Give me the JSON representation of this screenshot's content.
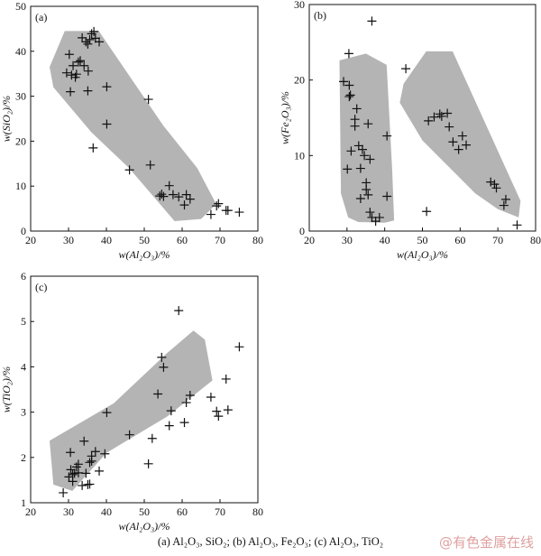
{
  "caption": "(a) Al₂O₃, SiO₂; (b) Al₂O₃, Fe₂O₃; (c) Al₂O₃, TiO₂",
  "watermark": "@有色金属在线",
  "colors": {
    "region": "#b4b4b4",
    "marker": "#111111",
    "axis": "#111111"
  },
  "chart_data": [
    {
      "type": "scatter",
      "panel_label": "(a)",
      "xlabel": "w(Al₂O₃)/%",
      "ylabel": "w(SiO₂)/%",
      "xlim": [
        20,
        80
      ],
      "ylim": [
        0,
        50
      ],
      "xticks": [
        20,
        30,
        40,
        50,
        60,
        70,
        80
      ],
      "yticks": [
        0,
        10,
        20,
        30,
        40,
        50
      ],
      "marker": "plus",
      "points": [
        [
          29.5,
          35.2
        ],
        [
          30.2,
          39.3
        ],
        [
          30.5,
          31
        ],
        [
          30.8,
          34.7
        ],
        [
          31.2,
          36.8
        ],
        [
          31.8,
          34.2
        ],
        [
          32.1,
          34.9
        ],
        [
          32.6,
          37.6
        ],
        [
          33.1,
          37.9
        ],
        [
          33.6,
          43
        ],
        [
          34.1,
          36.8
        ],
        [
          34.6,
          42.1
        ],
        [
          35.1,
          41.6
        ],
        [
          35.1,
          31.2
        ],
        [
          35.2,
          35.6
        ],
        [
          35.6,
          42.6
        ],
        [
          36.1,
          43.9
        ],
        [
          36.5,
          18.5
        ],
        [
          36.7,
          44.4
        ],
        [
          37.1,
          42.9
        ],
        [
          38.1,
          42.1
        ],
        [
          40.1,
          32.1
        ],
        [
          40.1,
          23.8
        ],
        [
          46.1,
          13.6
        ],
        [
          51.1,
          29.3
        ],
        [
          51.6,
          14.7
        ],
        [
          54.1,
          7.8
        ],
        [
          54.6,
          8.2
        ],
        [
          55.1,
          7.7
        ],
        [
          56.6,
          10.1
        ],
        [
          57.6,
          8.1
        ],
        [
          59.1,
          7.6
        ],
        [
          60.6,
          5.8
        ],
        [
          61.1,
          8.1
        ],
        [
          62.1,
          7.1
        ],
        [
          67.6,
          3.7
        ],
        [
          69.1,
          5.6
        ],
        [
          69.6,
          6.1
        ],
        [
          71.6,
          4.6
        ],
        [
          72.1,
          4.6
        ],
        [
          75.1,
          4.2
        ]
      ],
      "region": [
        [
          25,
          36.5
        ],
        [
          29,
          44.5
        ],
        [
          38,
          44.5
        ],
        [
          55,
          23.5
        ],
        [
          64,
          14
        ],
        [
          69,
          6
        ],
        [
          65,
          2.7
        ],
        [
          58,
          2.2
        ],
        [
          46,
          14
        ],
        [
          36,
          22
        ],
        [
          26,
          32
        ]
      ]
    },
    {
      "type": "scatter",
      "panel_label": "(b)",
      "xlabel": "w(Al₂O₃)/%",
      "ylabel": "w(Fe₂O₃)/%",
      "xlim": [
        20,
        80
      ],
      "ylim": [
        0,
        30
      ],
      "xticks": [
        20,
        30,
        40,
        50,
        60,
        70,
        80
      ],
      "yticks": [
        0,
        10,
        20,
        30
      ],
      "marker": "plus",
      "points": [
        [
          29.1,
          19.8
        ],
        [
          30.1,
          8.2
        ],
        [
          30.5,
          23.5
        ],
        [
          30.6,
          17.8
        ],
        [
          30.6,
          19.3
        ],
        [
          30.9,
          18
        ],
        [
          31.1,
          10.6
        ],
        [
          32.1,
          13.9
        ],
        [
          32.1,
          14.8
        ],
        [
          32.6,
          16.2
        ],
        [
          33.1,
          11.3
        ],
        [
          33.6,
          4.3
        ],
        [
          33.6,
          8.3
        ],
        [
          34.1,
          10.8
        ],
        [
          34.6,
          10
        ],
        [
          35.1,
          5.5
        ],
        [
          35.1,
          6.4
        ],
        [
          35.6,
          14.2
        ],
        [
          35.6,
          4.8
        ],
        [
          36.1,
          9.5
        ],
        [
          36.1,
          2.5
        ],
        [
          36.6,
          27.8
        ],
        [
          36.6,
          1.8
        ],
        [
          37.6,
          1.3
        ],
        [
          38.6,
          1.8
        ],
        [
          40.6,
          12.6
        ],
        [
          40.6,
          4.6
        ],
        [
          45.6,
          21.5
        ],
        [
          51.1,
          2.6
        ],
        [
          51.6,
          14.6
        ],
        [
          53.1,
          15.1
        ],
        [
          54.6,
          15.5
        ],
        [
          55.1,
          15.2
        ],
        [
          56.6,
          15.6
        ],
        [
          57.1,
          13.8
        ],
        [
          58.1,
          11.8
        ],
        [
          59.6,
          10.8
        ],
        [
          60.6,
          12.6
        ],
        [
          61.6,
          11.4
        ],
        [
          68.1,
          6.5
        ],
        [
          69.1,
          6.2
        ],
        [
          69.6,
          5.7
        ],
        [
          71.6,
          3.4
        ],
        [
          72.1,
          4.2
        ],
        [
          75.1,
          0.8
        ]
      ],
      "region": [
        [
          28,
          22.6
        ],
        [
          35,
          23.5
        ],
        [
          40.5,
          22
        ],
        [
          42,
          8
        ],
        [
          42.5,
          1.4
        ],
        [
          40,
          1.1
        ],
        [
          33,
          1.2
        ],
        [
          30.3,
          1.8
        ],
        [
          28.4,
          5
        ]
      ],
      "region2": [
        [
          45,
          19.5
        ],
        [
          51,
          23.8
        ],
        [
          58,
          23.8
        ],
        [
          76,
          4
        ],
        [
          75.5,
          1.8
        ],
        [
          70,
          2.9
        ],
        [
          64,
          5
        ],
        [
          50,
          12
        ],
        [
          44,
          17
        ]
      ]
    },
    {
      "type": "scatter",
      "panel_label": "(c)",
      "xlabel": "w(Al₂O₃)/%",
      "ylabel": "w(TiO₂)/%",
      "xlim": [
        20,
        80
      ],
      "ylim": [
        1,
        6
      ],
      "xticks": [
        20,
        30,
        40,
        50,
        60,
        70,
        80
      ],
      "yticks": [
        1,
        2,
        3,
        4,
        5,
        6
      ],
      "marker": "plus",
      "points": [
        [
          28.6,
          1.22
        ],
        [
          30.1,
          1.57
        ],
        [
          30.5,
          2.11
        ],
        [
          30.6,
          1.73
        ],
        [
          31.1,
          1.47
        ],
        [
          31.1,
          1.62
        ],
        [
          31.6,
          1.65
        ],
        [
          32.1,
          1.79
        ],
        [
          32.6,
          1.85
        ],
        [
          32.6,
          1.66
        ],
        [
          33.6,
          1.38
        ],
        [
          34.1,
          2.36
        ],
        [
          34.6,
          1.65
        ],
        [
          35.1,
          1.4
        ],
        [
          35.6,
          1.41
        ],
        [
          35.6,
          1.89
        ],
        [
          36.1,
          2.03
        ],
        [
          36.1,
          1.92
        ],
        [
          37.1,
          2.13
        ],
        [
          38.1,
          1.7
        ],
        [
          39.6,
          2.08
        ],
        [
          40.1,
          2.99
        ],
        [
          46.1,
          2.5
        ],
        [
          51.1,
          1.86
        ],
        [
          52.1,
          2.42
        ],
        [
          53.6,
          3.4
        ],
        [
          54.6,
          4.21
        ],
        [
          55.1,
          3.99
        ],
        [
          56.6,
          2.7
        ],
        [
          57.1,
          3.03
        ],
        [
          59.1,
          5.24
        ],
        [
          60.6,
          2.77
        ],
        [
          61.1,
          3.21
        ],
        [
          62.1,
          3.37
        ],
        [
          67.6,
          3.33
        ],
        [
          69.1,
          3.02
        ],
        [
          69.6,
          2.91
        ],
        [
          71.6,
          3.73
        ],
        [
          72.1,
          3.05
        ],
        [
          75.1,
          4.44
        ]
      ],
      "region": [
        [
          25,
          2.37
        ],
        [
          42,
          3.2
        ],
        [
          56,
          4.3
        ],
        [
          63,
          4.8
        ],
        [
          66,
          4.6
        ],
        [
          68,
          3.7
        ],
        [
          56,
          2.9
        ],
        [
          40,
          2.1
        ],
        [
          31,
          1.26
        ],
        [
          26,
          1.4
        ]
      ]
    }
  ]
}
